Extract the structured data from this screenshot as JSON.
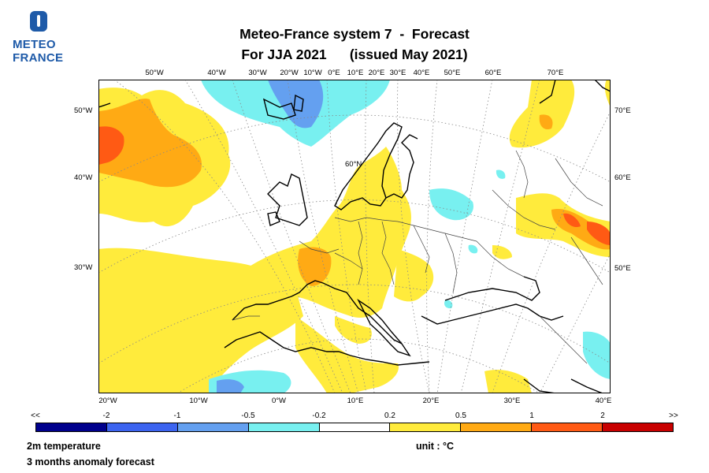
{
  "logo": {
    "line1": "METEO",
    "line2": "FRANCE"
  },
  "title": {
    "line1": "Meteo-France system 7  -  Forecast",
    "line2": "For JJA 2021      (issued May 2021)"
  },
  "map": {
    "top_lon_labels": [
      "50°W",
      "40°W",
      "30°W",
      "20°W",
      "10°W",
      "0°E",
      "10°E",
      "20°E",
      "30°E",
      "40°E",
      "50°E",
      "60°E",
      "70°E"
    ],
    "bottom_lon_labels": [
      "20°W",
      "10°W",
      "0°W",
      "10°E",
      "20°E",
      "30°E",
      "40°E"
    ],
    "left_labels": [
      "50°W",
      "40°W",
      "30°W"
    ],
    "right_labels": [
      "70°E",
      "60°E",
      "50°E"
    ],
    "inner_label": "60°N"
  },
  "colorbar": {
    "labels": [
      "<<",
      "-2",
      "-1",
      "-0.5",
      "-0.2",
      "0.2",
      "0.5",
      "1",
      "2",
      ">>"
    ],
    "colors": [
      "#00008c",
      "#3c64f0",
      "#64a0f0",
      "#78f0f0",
      "#ffffff",
      "#ffeb3c",
      "#ffaa14",
      "#ff5a14",
      "#c80000"
    ]
  },
  "footer": {
    "variable": "2m temperature",
    "description": "3 months anomaly forecast",
    "unit": "unit : °C"
  }
}
